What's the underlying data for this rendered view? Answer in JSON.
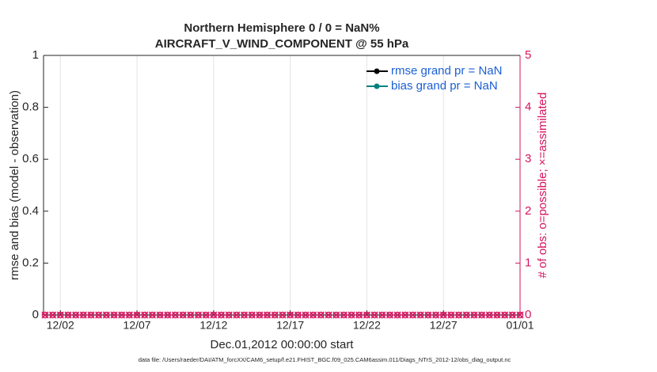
{
  "chart_data": {
    "type": "line",
    "title": "Northern Hemisphere 0 / 0 = NaN%",
    "subtitle": "AIRCRAFT_V_WIND_COMPONENT @ 55 hPa",
    "xlabel": "Dec.01,2012 00:00:00 start",
    "ylabel": "rmse and bias (model - observation)",
    "y2label": "# of obs: o=possible; ×=assimilated",
    "footnote": "data file: /Users/raeder/DAI/ATM_forcXX/CAM6_setup/f.e21.FHIST_BGC.f09_025.CAM6assim.011/Diags_NTrS_2012-12/obs_diag_output.nc",
    "x": [
      1,
      1.5,
      2,
      2.5,
      3,
      3.5,
      4,
      4.5,
      5,
      5.5,
      6,
      6.5,
      7,
      7.5,
      8,
      8.5,
      9,
      9.5,
      10,
      10.5,
      11,
      11.5,
      12,
      12.5,
      13,
      13.5,
      14,
      14.5,
      15,
      15.5,
      16,
      16.5,
      17,
      17.5,
      18,
      18.5,
      19,
      19.5,
      20,
      20.5,
      21,
      21.5,
      22,
      22.5,
      23,
      23.5,
      24,
      24.5,
      25,
      25.5,
      26,
      26.5,
      27,
      27.5,
      28,
      28.5,
      29,
      29.5,
      30,
      30.5,
      31,
      31.5,
      32
    ],
    "xlim": [
      0.9,
      32
    ],
    "xticks": [
      {
        "value": 2,
        "label": "12/02"
      },
      {
        "value": 7,
        "label": "12/07"
      },
      {
        "value": 12,
        "label": "12/12"
      },
      {
        "value": 17,
        "label": "12/17"
      },
      {
        "value": 22,
        "label": "12/22"
      },
      {
        "value": 27,
        "label": "12/27"
      },
      {
        "value": 32,
        "label": "01/01"
      }
    ],
    "ylim": [
      0,
      1
    ],
    "yticks": [
      0,
      0.2,
      0.4,
      0.6,
      0.8,
      1
    ],
    "y2lim": [
      0,
      5
    ],
    "y2ticks": [
      0,
      1,
      2,
      3,
      4,
      5
    ],
    "y2color": "#d6145f",
    "grid": "x",
    "legend": "upper right",
    "series": [
      {
        "name": "rmse grand pr = NaN",
        "color": "#000000",
        "marker": "dot",
        "values": [
          null,
          null,
          null,
          null,
          null,
          null,
          null,
          null,
          null,
          null,
          null,
          null,
          null,
          null,
          null,
          null,
          null,
          null,
          null,
          null,
          null,
          null,
          null,
          null,
          null,
          null,
          null,
          null,
          null,
          null,
          null,
          null,
          null,
          null,
          null,
          null,
          null,
          null,
          null,
          null,
          null,
          null,
          null,
          null,
          null,
          null,
          null,
          null,
          null,
          null,
          null,
          null,
          null,
          null,
          null,
          null,
          null,
          null,
          null,
          null,
          null,
          null,
          null
        ]
      },
      {
        "name": "bias grand pr = NaN",
        "color": "#00807f",
        "marker": "dot",
        "values": [
          null,
          null,
          null,
          null,
          null,
          null,
          null,
          null,
          null,
          null,
          null,
          null,
          null,
          null,
          null,
          null,
          null,
          null,
          null,
          null,
          null,
          null,
          null,
          null,
          null,
          null,
          null,
          null,
          null,
          null,
          null,
          null,
          null,
          null,
          null,
          null,
          null,
          null,
          null,
          null,
          null,
          null,
          null,
          null,
          null,
          null,
          null,
          null,
          null,
          null,
          null,
          null,
          null,
          null,
          null,
          null,
          null,
          null,
          null,
          null,
          null,
          null,
          null
        ]
      },
      {
        "color": "#d6145f",
        "axis": "y2",
        "marker": "circle",
        "values": [
          0,
          0,
          0,
          0,
          0,
          0,
          0,
          0,
          0,
          0,
          0,
          0,
          0,
          0,
          0,
          0,
          0,
          0,
          0,
          0,
          0,
          0,
          0,
          0,
          0,
          0,
          0,
          0,
          0,
          0,
          0,
          0,
          0,
          0,
          0,
          0,
          0,
          0,
          0,
          0,
          0,
          0,
          0,
          0,
          0,
          0,
          0,
          0,
          0,
          0,
          0,
          0,
          0,
          0,
          0,
          0,
          0,
          0,
          0,
          0,
          0,
          0,
          0
        ]
      },
      {
        "color": "#d6145f",
        "axis": "y2",
        "marker": "cross",
        "values": [
          0,
          0,
          0,
          0,
          0,
          0,
          0,
          0,
          0,
          0,
          0,
          0,
          0,
          0,
          0,
          0,
          0,
          0,
          0,
          0,
          0,
          0,
          0,
          0,
          0,
          0,
          0,
          0,
          0,
          0,
          0,
          0,
          0,
          0,
          0,
          0,
          0,
          0,
          0,
          0,
          0,
          0,
          0,
          0,
          0,
          0,
          0,
          0,
          0,
          0,
          0,
          0,
          0,
          0,
          0,
          0,
          0,
          0,
          0,
          0,
          0,
          0,
          0
        ]
      }
    ]
  }
}
